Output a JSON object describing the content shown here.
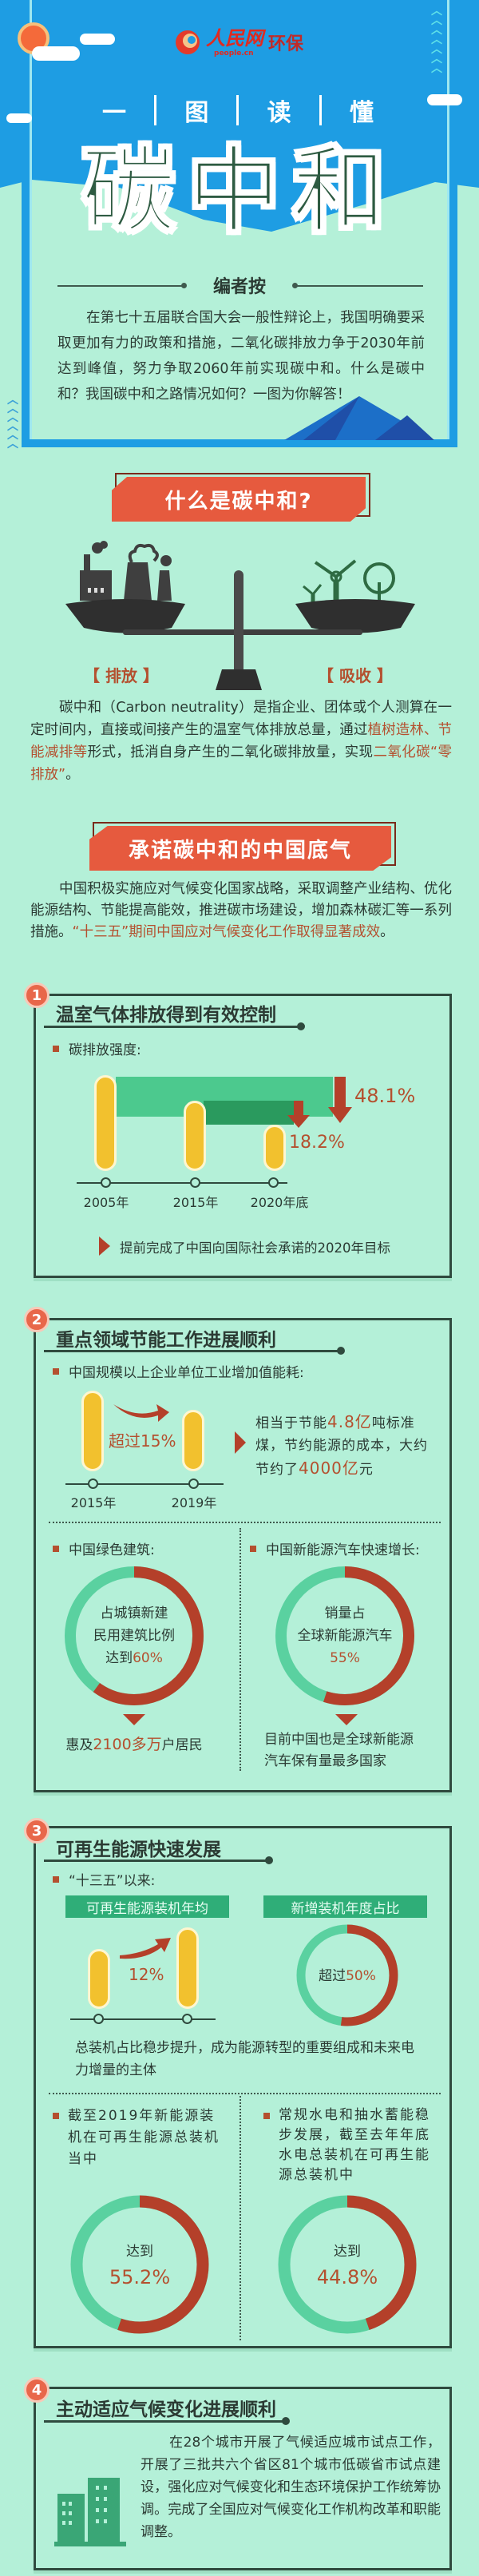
{
  "header": {
    "logo_text": "人民网",
    "logo_sub": "people.cn",
    "logo_channel": "环保",
    "kicker": [
      "一",
      "图",
      "读",
      "懂"
    ],
    "title": "碳中和",
    "editor_note_label": "编者按",
    "editor_note": "在第七十五届联合国大会一般性辩论上，我国明确要采取更加有力的政策和措施，二氧化碳排放力争于2030年前达到峰值，努力争取2060年前实现碳中和。什么是碳中和？我国碳中和之路情况如何？一图为你解答！"
  },
  "colors": {
    "blue": "#1e9de3",
    "mint": "#b4f0d8",
    "red": "#e65a3e",
    "dark_red": "#b4402a",
    "green": "#5ad1a0",
    "yellow": "#f2c12e",
    "title_green": "#2e5b42"
  },
  "what": {
    "banner": "什么是碳中和?",
    "left_label": "【 排放 】",
    "right_label": "【 吸收 】",
    "p1": "碳中和（Carbon neutrality）是指企业、团体或个人测算在一定时间内，直接或间接产生的温室气体排放总量，通过",
    "p_hl1": "植树造林、节能减排等",
    "p2": "形式，抵消自身产生的二氧化碳排放量，实现",
    "p_hl2": "二氧化碳“零排放”",
    "p3": "。"
  },
  "china": {
    "banner": "承诺碳中和的中国底气",
    "p1": "中国积极实施应对气候变化国家战略，采取调整产业结构、优化能源结构、节能提高能效，推进碳市场建设，增加森林碳汇等一系列措施。",
    "p_hl": "“十三五”期间中国应对气候变化工作取得显著成效",
    "p2": "。"
  },
  "s1": {
    "num": "1",
    "title": "温室气体排放得到有效控制",
    "bullet": "碳排放强度:",
    "years": [
      "2005年",
      "2015年",
      "2020年底"
    ],
    "drop_2005_2020": "48.1%",
    "drop_2015_2020": "18.2%",
    "note": "提前完成了中国向国际社会承诺的2020年目标"
  },
  "s2": {
    "num": "2",
    "title": "重点领域节能工作进展顺利",
    "bullet1": "中国规模以上企业单位工业增加值能耗:",
    "years": [
      "2015年",
      "2019年"
    ],
    "change": "超过15%",
    "eq_a": "相当于节能",
    "eq_v1": "4.8亿",
    "eq_b": "吨标准煤，节约能源的成本，大约节约了",
    "eq_v2": "4000亿",
    "eq_c": "元",
    "bullet2": "中国绿色建筑:",
    "donut_left": {
      "lines": [
        "占城镇新建",
        "民用建筑比例",
        "达到"
      ],
      "value": "60%",
      "fraction": 0.6
    },
    "left_a": "惠及",
    "left_v": "2100多万",
    "left_b": "户居民",
    "bullet3": "中国新能源汽车快速增长:",
    "donut_right": {
      "lines": [
        "销量占",
        "全球新能源汽车"
      ],
      "value": "55%",
      "fraction": 0.55
    },
    "right_note": [
      "目前中国也是全球新能源",
      "汽车保有量最多国家"
    ]
  },
  "s3": {
    "num": "3",
    "title": "可再生能源快速发展",
    "bullet": "“十三五”以来:",
    "label_left": "可再生能源装机年均",
    "label_right": "新增装机年度占比",
    "growth": "12%",
    "donut": {
      "pre": "超过",
      "value": "50%",
      "fraction": 0.52
    },
    "summary": "总装机占比稳步提升，成为能源转型的重要组成和未来电力增量的主体",
    "left_bullet": "截至2019年新能源装机在可再生能源总装机当中",
    "left_donut": {
      "pre": "达到",
      "value": "55.2%",
      "fraction": 0.552
    },
    "right_bullet": "常规水电和抽水蓄能稳步发展，截至去年年底水电总装机在可再生能源总装机中",
    "right_donut": {
      "pre": "达到",
      "value": "44.8%",
      "fraction": 0.448
    }
  },
  "s4": {
    "num": "4",
    "title": "主动适应气候变化进展顺利",
    "text": "在28个城市开展了气候适应城市试点工作，开展了三批共六个省区81个城市低碳省市试点建设，强化应对气候变化和生态环境保护工作统筹协调。完成了全国应对气候变化工作机构改革和职能调整。"
  }
}
